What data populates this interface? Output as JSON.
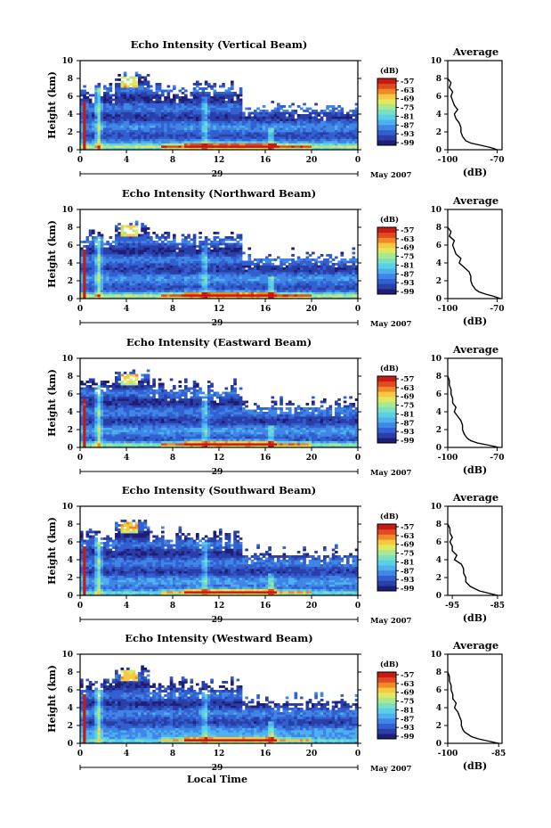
{
  "figure": {
    "shared_xlabel": "Local Time",
    "month_label": "May 2007",
    "day_label": "29",
    "colorbar_unit": "(dB)",
    "profile_title": "Average",
    "profile_xlabel": "(dB)",
    "colormap": [
      "#1e1e78",
      "#2a3fa8",
      "#3360d0",
      "#3f86e6",
      "#4fb0f0",
      "#5ad0e8",
      "#7ae0c0",
      "#a8e890",
      "#e0e860",
      "#f8c840",
      "#f08a28",
      "#e04a1e",
      "#c81a14"
    ]
  },
  "chart_data": [
    {
      "type": "heatmap",
      "title": "Echo Intensity (Vertical Beam)",
      "ylabel": "Height (km)",
      "xlim": [
        0,
        24
      ],
      "ylim": [
        0,
        10
      ],
      "x_ticks": [
        "0",
        "4",
        "8",
        "12",
        "16",
        "20",
        "0"
      ],
      "y_ticks": [
        "0",
        "2",
        "4",
        "6",
        "8",
        "10"
      ],
      "colorbar": {
        "unit": "(dB)",
        "labels": [
          "-57",
          "-63",
          "-69",
          "-75",
          "-81",
          "-87",
          "-93",
          "-99"
        ]
      },
      "profile": {
        "title": "Average",
        "xlabel": "(dB)",
        "xlim": [
          -100,
          -67
        ],
        "x_ticks": [
          "-100",
          "-70"
        ],
        "y_ticks": [
          "0",
          "2",
          "4",
          "6",
          "8",
          "10"
        ],
        "height_km": [
          0,
          0.25,
          0.5,
          0.75,
          1,
          1.25,
          1.5,
          2,
          2.5,
          3,
          3.5,
          4,
          4.5,
          5,
          5.5,
          6,
          6.5,
          7,
          7.5,
          8
        ],
        "db": [
          -70,
          -74,
          -80,
          -86,
          -89,
          -90,
          -91,
          -92,
          -92,
          -93,
          -95,
          -96,
          -94,
          -96,
          -97,
          -98,
          -97,
          -99,
          -98,
          -100
        ]
      }
    },
    {
      "type": "heatmap",
      "title": "Echo Intensity (Northward Beam)",
      "ylabel": "Height (km)",
      "xlim": [
        0,
        24
      ],
      "ylim": [
        0,
        10
      ],
      "x_ticks": [
        "0",
        "4",
        "8",
        "12",
        "16",
        "20",
        "0"
      ],
      "y_ticks": [
        "0",
        "2",
        "4",
        "6",
        "8",
        "10"
      ],
      "colorbar": {
        "unit": "(dB)",
        "labels": [
          "-57",
          "-63",
          "-69",
          "-75",
          "-81",
          "-87",
          "-93",
          "-99"
        ]
      },
      "profile": {
        "title": "Average",
        "xlabel": "(dB)",
        "xlim": [
          -100,
          -67
        ],
        "x_ticks": [
          "-100",
          "-70"
        ],
        "y_ticks": [
          "0",
          "2",
          "4",
          "6",
          "8",
          "10"
        ],
        "height_km": [
          0,
          0.25,
          0.5,
          0.75,
          1,
          1.25,
          1.5,
          2,
          2.5,
          3,
          3.5,
          4,
          4.5,
          5,
          5.5,
          6,
          6.5,
          7,
          7.5,
          8
        ],
        "db": [
          -68,
          -72,
          -77,
          -81,
          -83,
          -84,
          -85,
          -86,
          -86,
          -87,
          -90,
          -93,
          -92,
          -95,
          -96,
          -97,
          -96,
          -99,
          -98,
          -100
        ]
      }
    },
    {
      "type": "heatmap",
      "title": "Echo Intensity (Eastward Beam)",
      "ylabel": "Height (km)",
      "xlim": [
        0,
        24
      ],
      "ylim": [
        0,
        10
      ],
      "x_ticks": [
        "0",
        "4",
        "8",
        "12",
        "16",
        "20",
        "0"
      ],
      "y_ticks": [
        "0",
        "2",
        "4",
        "6",
        "8",
        "10"
      ],
      "colorbar": {
        "unit": "(dB)",
        "labels": [
          "-57",
          "-63",
          "-69",
          "-75",
          "-81",
          "-87",
          "-93",
          "-99"
        ]
      },
      "profile": {
        "title": "Average",
        "xlabel": "(dB)",
        "xlim": [
          -100,
          -67
        ],
        "x_ticks": [
          "-100",
          "-70"
        ],
        "y_ticks": [
          "0",
          "2",
          "4",
          "6",
          "8",
          "10"
        ],
        "height_km": [
          0,
          0.25,
          0.5,
          0.75,
          1,
          1.25,
          1.5,
          2,
          2.5,
          3,
          3.5,
          4,
          4.5,
          5,
          5.5,
          6,
          6.5,
          7,
          7.5,
          8
        ],
        "db": [
          -69,
          -75,
          -82,
          -86,
          -88,
          -89,
          -90,
          -91,
          -91,
          -92,
          -94,
          -96,
          -95,
          -97,
          -97,
          -98,
          -98,
          -99,
          -99,
          -100
        ]
      }
    },
    {
      "type": "heatmap",
      "title": "Echo Intensity (Southward Beam)",
      "ylabel": "Height (km)",
      "xlim": [
        0,
        24
      ],
      "ylim": [
        0,
        10
      ],
      "x_ticks": [
        "0",
        "4",
        "8",
        "12",
        "16",
        "20",
        "0"
      ],
      "y_ticks": [
        "0",
        "2",
        "4",
        "6",
        "8",
        "10"
      ],
      "colorbar": {
        "unit": "(dB)",
        "labels": [
          "-57",
          "-63",
          "-69",
          "-75",
          "-81",
          "-87",
          "-93",
          "-99"
        ]
      },
      "profile": {
        "title": "Average",
        "xlabel": "(dB)",
        "xlim": [
          -96,
          -84
        ],
        "x_ticks": [
          "-95",
          "-85"
        ],
        "y_ticks": [
          "0",
          "2",
          "4",
          "6",
          "8",
          "10"
        ],
        "height_km": [
          0,
          0.25,
          0.5,
          0.75,
          1,
          1.25,
          1.5,
          2,
          2.5,
          3,
          3.5,
          4,
          4.5,
          5,
          5.5,
          6,
          6.5,
          7,
          7.5,
          8
        ],
        "db": [
          -85,
          -87,
          -89,
          -90,
          -91,
          -91.5,
          -92,
          -92,
          -92.5,
          -92.5,
          -93,
          -94.5,
          -94,
          -95,
          -95,
          -95.5,
          -95,
          -95.5,
          -95.5,
          -96
        ]
      }
    },
    {
      "type": "heatmap",
      "title": "Echo Intensity (Westward Beam)",
      "ylabel": "Height (km)",
      "xlim": [
        0,
        24
      ],
      "ylim": [
        0,
        10
      ],
      "x_ticks": [
        "0",
        "4",
        "8",
        "12",
        "16",
        "20",
        "0"
      ],
      "y_ticks": [
        "0",
        "2",
        "4",
        "6",
        "8",
        "10"
      ],
      "colorbar": {
        "unit": "(dB)",
        "labels": [
          "-57",
          "-63",
          "-69",
          "-75",
          "-81",
          "-87",
          "-93",
          "-99"
        ]
      },
      "profile": {
        "title": "Average",
        "xlabel": "(dB)",
        "xlim": [
          -100,
          -84
        ],
        "x_ticks": [
          "-100",
          "-85"
        ],
        "y_ticks": [
          "0",
          "2",
          "4",
          "6",
          "8",
          "10"
        ],
        "height_km": [
          0,
          0.25,
          0.5,
          0.75,
          1,
          1.25,
          1.5,
          2,
          2.5,
          3,
          3.5,
          4,
          4.5,
          5,
          5.5,
          6,
          6.5,
          7,
          7.5,
          8
        ],
        "db": [
          -85,
          -88,
          -91,
          -93,
          -94,
          -95,
          -95.5,
          -96,
          -96,
          -96.5,
          -97,
          -98,
          -97.5,
          -98.5,
          -98.5,
          -99,
          -99,
          -99.5,
          -99.5,
          -100
        ]
      }
    }
  ]
}
